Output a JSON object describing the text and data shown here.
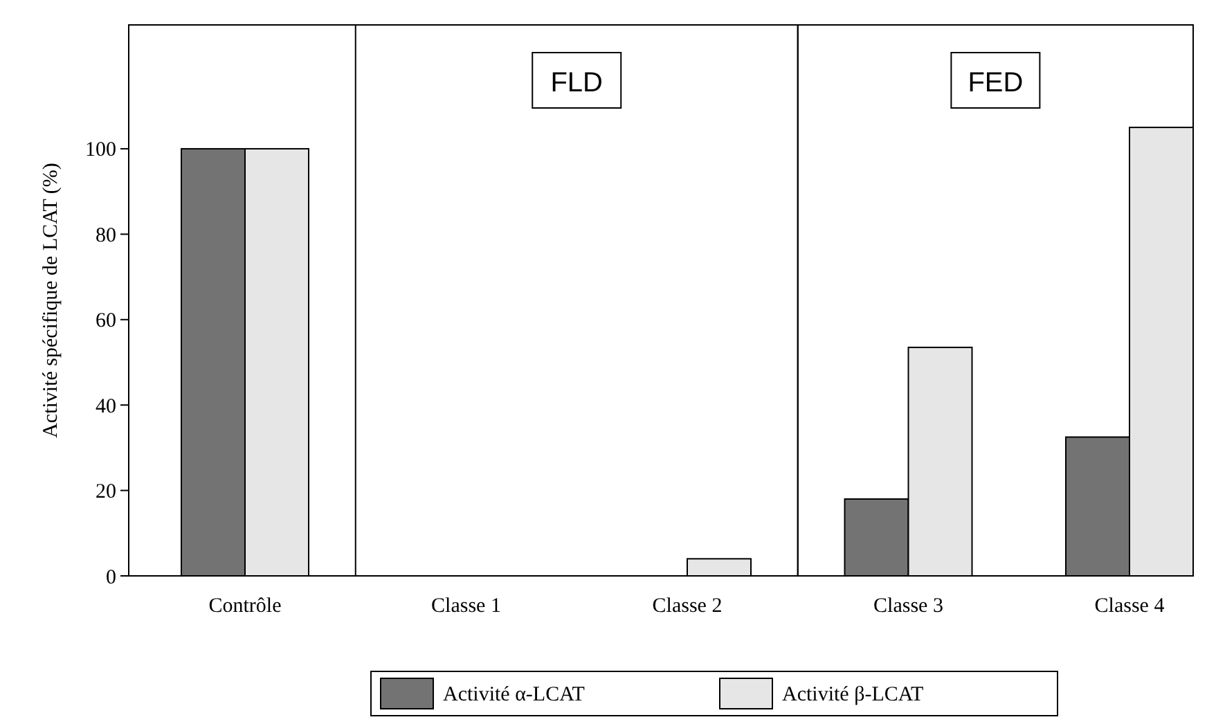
{
  "chart_data": {
    "type": "bar",
    "ylabel": "Activité spécifique de LCAT (%)",
    "categories": [
      "Contrôle",
      "Classe 1",
      "Classe 2",
      "Classe 3",
      "Classe 4"
    ],
    "series": [
      {
        "name": "Activité α-LCAT",
        "color": "#737373",
        "values": [
          100,
          0,
          0,
          18,
          32.5
        ]
      },
      {
        "name": "Activité β-LCAT",
        "color": "#e6e6e6",
        "values": [
          100,
          0,
          4,
          53.5,
          105
        ]
      }
    ],
    "ylim": [
      0,
      129
    ],
    "yticks": [
      0,
      20,
      40,
      60,
      80,
      100
    ],
    "bands": [
      {
        "axis": "x",
        "from": "Classe 1",
        "to": "Classe 2",
        "label": "FLD"
      },
      {
        "axis": "x",
        "from": "Classe 3",
        "to": "Classe 4",
        "label": "FED"
      }
    ],
    "grid": false,
    "legend": "bottom"
  }
}
